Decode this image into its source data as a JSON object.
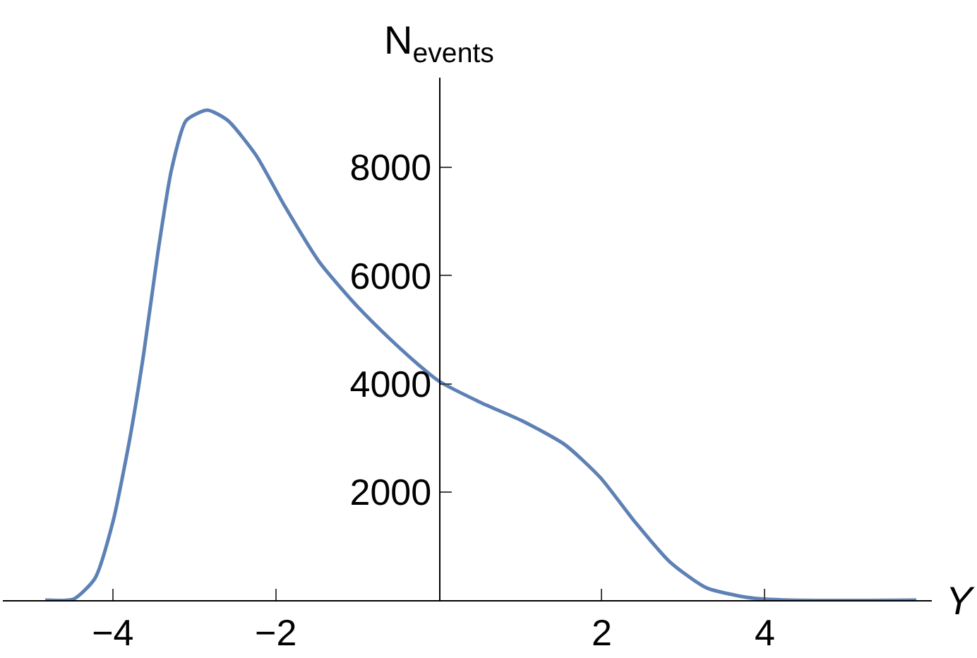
{
  "chart_data": {
    "type": "line",
    "xlabel": "Y",
    "ylabel": "N$_{events}$",
    "xlim": [
      -5.35,
      6.05
    ],
    "ylim": [
      0,
      9660
    ],
    "xticks": [
      -4,
      -2,
      2,
      4
    ],
    "yticks": [
      2000,
      4000,
      6000,
      8000
    ],
    "marker": "none",
    "line_style": "solid",
    "x": [
      -4.83,
      -4.48,
      -4.22,
      -4.0,
      -3.79,
      -3.62,
      -3.45,
      -3.28,
      -3.1,
      -2.84,
      -2.59,
      -2.24,
      -1.9,
      -1.47,
      -1.03,
      -0.6,
      -0.17,
      0,
      0.52,
      1.03,
      1.55,
      1.98,
      2.41,
      2.84,
      3.28,
      3.79,
      4.31,
      5.86
    ],
    "series": [
      {
        "color": "#5e81b5",
        "values": [
          0,
          20,
          400,
          1440,
          3000,
          4570,
          6400,
          7960,
          8870,
          9060,
          8870,
          8220,
          7310,
          6260,
          5480,
          4830,
          4250,
          4050,
          3650,
          3310,
          2870,
          2270,
          1440,
          700,
          230,
          50,
          0,
          0
        ]
      }
    ]
  }
}
